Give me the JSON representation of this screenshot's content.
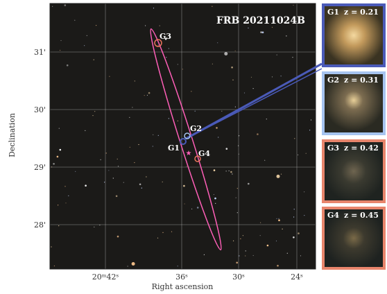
{
  "figure": {
    "title": "FRB 20211024B",
    "x_axis": {
      "label": "Right ascension",
      "ticks": [
        "20ᵐ42ˢ",
        "36ˢ",
        "30ˢ",
        "24ˢ"
      ]
    },
    "y_axis": {
      "label": "Declination",
      "ticks": [
        "31'",
        "30'",
        "29'",
        "28'"
      ]
    },
    "markers": [
      "G1",
      "G2",
      "G3",
      "G4"
    ],
    "cutouts": [
      {
        "name": "G1",
        "redshift": "z = 0.21"
      },
      {
        "name": "G2",
        "redshift": "z = 0.31"
      },
      {
        "name": "G3",
        "redshift": "z = 0.42"
      },
      {
        "name": "G4",
        "redshift": "z = 0.45"
      }
    ]
  }
}
